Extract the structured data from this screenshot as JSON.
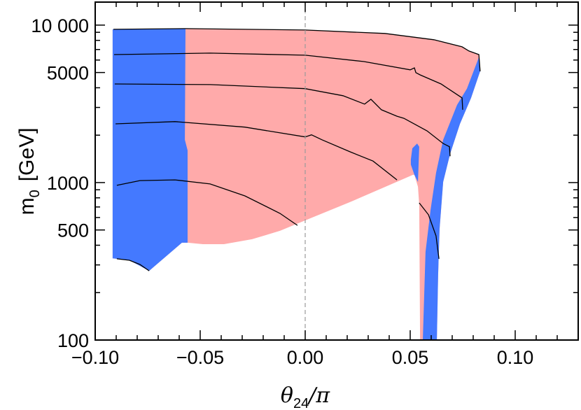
{
  "chart_data": {
    "type": "area",
    "xlabel": {
      "symbol": "θ",
      "subscript": "24",
      "suffix": "/π"
    },
    "ylabel": {
      "symbol": "m",
      "subscript": "0",
      "unit": "[GeV]"
    },
    "xlim": [
      -0.1,
      0.13
    ],
    "ylim": [
      100,
      14000
    ],
    "yscale": "log",
    "grid": false,
    "x_ticks": [
      {
        "value": -0.1,
        "label": "−0.10"
      },
      {
        "value": -0.05,
        "label": "−0.05"
      },
      {
        "value": 0.0,
        "label": "0.00"
      },
      {
        "value": 0.05,
        "label": "0.05"
      },
      {
        "value": 0.1,
        "label": "0.10"
      }
    ],
    "y_ticks": [
      {
        "value": 100,
        "label": "100"
      },
      {
        "value": 500,
        "label": "500"
      },
      {
        "value": 1000,
        "label": "1000"
      },
      {
        "value": 5000,
        "label": "5000"
      },
      {
        "value": 10000,
        "label": "10 000"
      }
    ],
    "colors": {
      "pink": "#ffaaaa",
      "blue": "#4479ff",
      "contour": "#000000",
      "reference": "#999999"
    },
    "reference_line": {
      "x": 0.0,
      "style": "dashed"
    },
    "regions": [
      {
        "color": "pink",
        "points": [
          [
            -0.0917,
            9400
          ],
          [
            -0.057,
            9500
          ],
          [
            0,
            9310
          ],
          [
            0.038,
            8850
          ],
          [
            0.0613,
            8070
          ],
          [
            0.0747,
            7280
          ],
          [
            0.078,
            6850
          ],
          [
            0.0827,
            6500
          ],
          [
            0.0827,
            6250
          ],
          [
            0.0833,
            5090
          ],
          [
            0.079,
            3450
          ],
          [
            0.0737,
            2360
          ],
          [
            0.069,
            1520
          ],
          [
            0.0657,
            1010
          ],
          [
            0.064,
            509
          ],
          [
            0.0633,
            259
          ],
          [
            0.0627,
            100
          ],
          [
            0.0547,
            100
          ],
          [
            0.0543,
            721
          ],
          [
            0.0537,
            940
          ],
          [
            0.052,
            1120
          ],
          [
            0.0513,
            1120
          ],
          [
            0.0213,
            751
          ],
          [
            0,
            575
          ],
          [
            -0.012,
            494
          ],
          [
            -0.0253,
            437
          ],
          [
            -0.0387,
            406
          ],
          [
            -0.0487,
            406
          ],
          [
            -0.056,
            415
          ],
          [
            -0.0587,
            415
          ],
          [
            -0.0743,
            275
          ],
          [
            -0.0837,
            321
          ],
          [
            -0.0897,
            328
          ],
          [
            -0.0917,
            330
          ]
        ]
      },
      {
        "color": "blue",
        "points": [
          [
            -0.0917,
            9400
          ],
          [
            -0.057,
            9500
          ],
          [
            -0.0573,
            1870
          ],
          [
            -0.056,
            1600
          ],
          [
            -0.056,
            415
          ],
          [
            -0.0587,
            415
          ],
          [
            -0.0743,
            275
          ],
          [
            -0.0837,
            321
          ],
          [
            -0.0897,
            328
          ],
          [
            -0.0917,
            330
          ]
        ]
      },
      {
        "color": "blue",
        "points": [
          [
            0.0827,
            6250
          ],
          [
            0.0813,
            5580
          ],
          [
            0.077,
            3950
          ],
          [
            0.0723,
            3110
          ],
          [
            0.0657,
            1870
          ],
          [
            0.0623,
            1150
          ],
          [
            0.0597,
            671
          ],
          [
            0.0573,
            363
          ],
          [
            0.056,
            100
          ],
          [
            0.0627,
            100
          ],
          [
            0.0633,
            259
          ],
          [
            0.064,
            509
          ],
          [
            0.0657,
            1010
          ],
          [
            0.069,
            1520
          ],
          [
            0.0737,
            2360
          ],
          [
            0.079,
            3450
          ],
          [
            0.0833,
            5090
          ]
        ]
      },
      {
        "color": "blue",
        "points": [
          [
            0.0503,
            1400
          ],
          [
            0.051,
            1650
          ],
          [
            0.0533,
            1770
          ],
          [
            0.0543,
            1690
          ],
          [
            0.0537,
            1010
          ],
          [
            0.052,
            1120
          ],
          [
            0.0503,
            1300
          ]
        ]
      }
    ],
    "contours": [
      [
        [
          -0.0913,
          9400
        ],
        [
          -0.057,
          9500
        ],
        [
          0,
          9310
        ],
        [
          0.038,
          8850
        ],
        [
          0.0613,
          8070
        ],
        [
          0.0747,
          7280
        ],
        [
          0.078,
          6850
        ],
        [
          0.0827,
          6500
        ],
        [
          0.0833,
          5090
        ]
      ],
      [
        [
          -0.091,
          6500
        ],
        [
          -0.0453,
          6640
        ],
        [
          0,
          6440
        ],
        [
          0.028,
          5870
        ],
        [
          0.05,
          5200
        ],
        [
          0.052,
          5350
        ],
        [
          0.0527,
          4990
        ],
        [
          0.0547,
          4830
        ],
        [
          0.0647,
          4230
        ],
        [
          0.0747,
          3450
        ],
        [
          0.075,
          2900
        ]
      ],
      [
        [
          -0.0907,
          4230
        ],
        [
          -0.0453,
          4190
        ],
        [
          0,
          3950
        ],
        [
          0.018,
          3560
        ],
        [
          0.0283,
          3150
        ],
        [
          0.0313,
          3380
        ],
        [
          0.0363,
          2900
        ],
        [
          0.0437,
          2640
        ],
        [
          0.047,
          2560
        ],
        [
          0.058,
          2130
        ],
        [
          0.0657,
          1770
        ],
        [
          0.0687,
          1690
        ],
        [
          0.069,
          1470
        ]
      ],
      [
        [
          -0.0903,
          2360
        ],
        [
          -0.062,
          2440
        ],
        [
          -0.0287,
          2250
        ],
        [
          0,
          1950
        ],
        [
          0.003,
          2010
        ],
        [
          0.008,
          1870
        ],
        [
          0.0213,
          1570
        ],
        [
          0.0323,
          1370
        ],
        [
          0.0437,
          1040
        ]
      ],
      [
        [
          0.0543,
          743
        ],
        [
          0.0587,
          625
        ],
        [
          0.0623,
          459
        ],
        [
          0.0637,
          328
        ]
      ],
      [
        [
          -0.0897,
          960
        ],
        [
          -0.0787,
          1030
        ],
        [
          -0.062,
          1040
        ],
        [
          -0.0453,
          980
        ],
        [
          -0.0287,
          823
        ],
        [
          -0.012,
          637
        ],
        [
          -0.0037,
          535
        ]
      ],
      [
        [
          -0.0897,
          328
        ],
        [
          -0.0837,
          321
        ],
        [
          -0.0787,
          302
        ],
        [
          -0.0743,
          275
        ]
      ]
    ]
  }
}
